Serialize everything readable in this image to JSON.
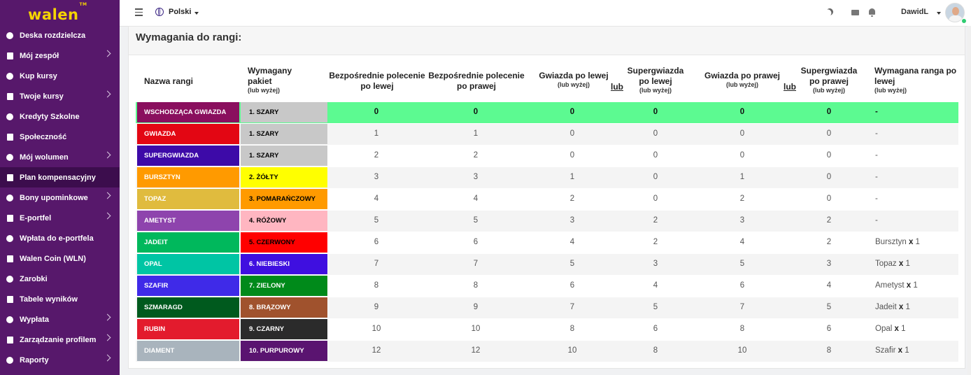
{
  "brand": {
    "logo": "walen",
    "tm": "TM"
  },
  "sidebar": {
    "items": [
      {
        "label": "Deska rozdzielcza",
        "icon": "dashboard-icon",
        "chevron": false
      },
      {
        "label": "Mój zespół",
        "icon": "team-icon",
        "chevron": true
      },
      {
        "label": "Kup kursy",
        "icon": "cart-icon",
        "chevron": false
      },
      {
        "label": "Twoje kursy",
        "icon": "graduation-icon",
        "chevron": true
      },
      {
        "label": "Kredyty Szkolne",
        "icon": "credit-card-icon",
        "chevron": false
      },
      {
        "label": "Społeczność",
        "icon": "community-icon",
        "chevron": false
      },
      {
        "label": "Mój wolumen",
        "icon": "volume-bars-icon",
        "chevron": true
      },
      {
        "label": "Plan kompensacyjny",
        "icon": "document-icon",
        "chevron": false,
        "active": true
      },
      {
        "label": "Bony upominkowe",
        "icon": "gift-icon",
        "chevron": true
      },
      {
        "label": "E-portfel",
        "icon": "wallet-icon",
        "chevron": true
      },
      {
        "label": "Wpłata do e-portfela",
        "icon": "deposit-icon",
        "chevron": false
      },
      {
        "label": "Walen Coin (WLN)",
        "icon": "won-sign-icon",
        "chevron": false
      },
      {
        "label": "Zarobki",
        "icon": "dollar-icon",
        "chevron": false
      },
      {
        "label": "Tabele wyników",
        "icon": "trophy-icon",
        "chevron": false
      },
      {
        "label": "Wypłata",
        "icon": "payout-icon",
        "chevron": true
      },
      {
        "label": "Zarządzanie profilem",
        "icon": "profile-icon",
        "chevron": true
      },
      {
        "label": "Raporty",
        "icon": "chart-icon",
        "chevron": true
      }
    ]
  },
  "topbar": {
    "language": "Polski",
    "username": "DawidL"
  },
  "card": {
    "title": "Wymagania do rangi:"
  },
  "table": {
    "headers": {
      "rank": "Nazwa rangi",
      "package": "Wymagany pakiet",
      "package_note": "(lub wyżej)",
      "direct_left": "Bezpośrednie polecenie po lewej",
      "direct_right": "Bezpośrednie polecenie po prawej",
      "star_left": "Gwiazda po lewej",
      "star_left_note": "(lub wyżej)",
      "superstar_left": "Supergwiazda po lewej",
      "superstar_left_note": "(lub wyżej)",
      "star_right": "Gwiazda po prawej",
      "star_right_note": "(lub wyżej)",
      "superstar_right": "Supergwiazda po prawej",
      "superstar_right_note": "(lub wyżej)",
      "required_rank": "Wymagana ranga po lewej",
      "required_rank_note": "(lub wyżej)",
      "or1": "lub",
      "or2": "lub"
    },
    "rows": [
      {
        "rank": "Wschodząca Gwiazda",
        "rank_color": "#8a0f5e",
        "package": "1. SZARY",
        "pkg_color": "#c8c8c8",
        "pkg_text": "#000000",
        "dl": "0",
        "dr": "0",
        "sl": "0",
        "ssl": "0",
        "sr": "0",
        "ssr": "0",
        "req": "-",
        "req_mult": ""
      },
      {
        "rank": "Gwiazda",
        "rank_color": "#e30613",
        "package": "1. SZARY",
        "pkg_color": "#c8c8c8",
        "pkg_text": "#000000",
        "dl": "1",
        "dr": "1",
        "sl": "0",
        "ssl": "0",
        "sr": "0",
        "ssr": "0",
        "req": "-",
        "req_mult": ""
      },
      {
        "rank": "Supergwiazda",
        "rank_color": "#3d0aa8",
        "package": "1. SZARY",
        "pkg_color": "#c8c8c8",
        "pkg_text": "#000000",
        "dl": "2",
        "dr": "2",
        "sl": "0",
        "ssl": "0",
        "sr": "0",
        "ssr": "0",
        "req": "-",
        "req_mult": ""
      },
      {
        "rank": "Bursztyn",
        "rank_color": "#ff9a00",
        "package": "2. ŻÓŁTY",
        "pkg_color": "#ffff00",
        "pkg_text": "#000000",
        "dl": "3",
        "dr": "3",
        "sl": "1",
        "ssl": "0",
        "sr": "1",
        "ssr": "0",
        "req": "-",
        "req_mult": ""
      },
      {
        "rank": "Topaz",
        "rank_color": "#e0bb3e",
        "package": "3. POMARAŃCZOWY",
        "pkg_color": "#ff9a00",
        "pkg_text": "#000000",
        "dl": "4",
        "dr": "4",
        "sl": "2",
        "ssl": "0",
        "sr": "2",
        "ssr": "0",
        "req": "-",
        "req_mult": ""
      },
      {
        "rank": "Ametyst",
        "rank_color": "#8e44ad",
        "package": "4. RÓŻOWY",
        "pkg_color": "#ffb6c1",
        "pkg_text": "#000000",
        "dl": "5",
        "dr": "5",
        "sl": "3",
        "ssl": "2",
        "sr": "3",
        "ssr": "2",
        "req": "-",
        "req_mult": ""
      },
      {
        "rank": "Jadeit",
        "rank_color": "#00b85c",
        "package": "5. CZERWONY",
        "pkg_color": "#ff0000",
        "pkg_text": "#000000",
        "dl": "6",
        "dr": "6",
        "sl": "4",
        "ssl": "2",
        "sr": "4",
        "ssr": "2",
        "req": "Bursztyn",
        "req_mult": "1"
      },
      {
        "rank": "Opal",
        "rank_color": "#00c5a4",
        "package": "6. NIEBIESKI",
        "pkg_color": "#3f0fe0",
        "pkg_text": "#ffffff",
        "dl": "7",
        "dr": "7",
        "sl": "5",
        "ssl": "3",
        "sr": "5",
        "ssr": "3",
        "req": "Topaz",
        "req_mult": "1"
      },
      {
        "rank": "Szafir",
        "rank_color": "#3f2ae8",
        "package": "7. ZIELONY",
        "pkg_color": "#008a1a",
        "pkg_text": "#ffffff",
        "dl": "8",
        "dr": "8",
        "sl": "6",
        "ssl": "4",
        "sr": "6",
        "ssr": "4",
        "req": "Ametyst",
        "req_mult": "1"
      },
      {
        "rank": "Szmaragd",
        "rank_color": "#005a1e",
        "package": "8. BRĄZOWY",
        "pkg_color": "#a0522d",
        "pkg_text": "#ffffff",
        "dl": "9",
        "dr": "9",
        "sl": "7",
        "ssl": "5",
        "sr": "7",
        "ssr": "5",
        "req": "Jadeit",
        "req_mult": "1"
      },
      {
        "rank": "Rubin",
        "rank_color": "#e31b2d",
        "package": "9. CZARNY",
        "pkg_color": "#2b2b2b",
        "pkg_text": "#ffffff",
        "dl": "10",
        "dr": "10",
        "sl": "8",
        "ssl": "6",
        "sr": "8",
        "ssr": "6",
        "req": "Opal",
        "req_mult": "1"
      },
      {
        "rank": "Diament",
        "rank_color": "#a9b4bd",
        "package": "10. PURPUROWY",
        "pkg_color": "#5a1470",
        "pkg_text": "#ffffff",
        "dl": "12",
        "dr": "12",
        "sl": "10",
        "ssl": "8",
        "sr": "10",
        "ssr": "8",
        "req": "Szafir",
        "req_mult": "1"
      }
    ]
  }
}
